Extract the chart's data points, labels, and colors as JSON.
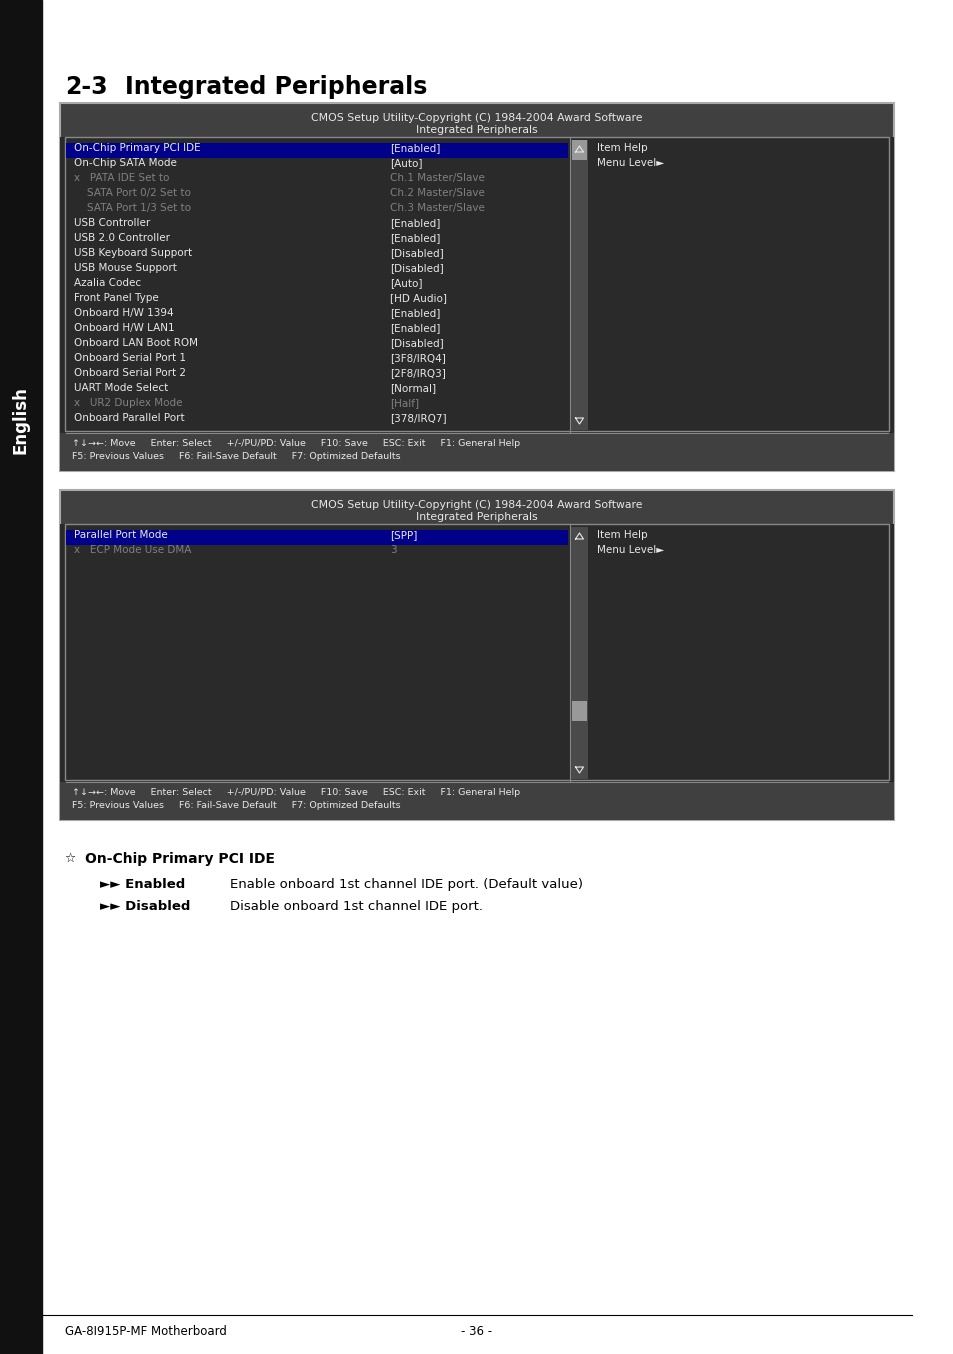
{
  "page_label": "GA-8I915P-MF Motherboard",
  "page_number": "- 36 -",
  "sidebar_text": "English",
  "heading_num": "2-3",
  "heading_txt": "Integrated Peripherals",
  "bios_title": "CMOS Setup Utility-Copyright (C) 1984-2004 Award Software",
  "bios_subtitle": "Integrated Peripherals",
  "table1_rows": [
    [
      "On-Chip Primary PCI IDE",
      "[Enabled]",
      "white"
    ],
    [
      "On-Chip SATA Mode",
      "[Auto]",
      "white"
    ],
    [
      "x   PATA IDE Set to",
      "Ch.1 Master/Slave",
      "gray"
    ],
    [
      "    SATA Port 0/2 Set to",
      "Ch.2 Master/Slave",
      "gray"
    ],
    [
      "    SATA Port 1/3 Set to",
      "Ch.3 Master/Slave",
      "gray"
    ],
    [
      "USB Controller",
      "[Enabled]",
      "white"
    ],
    [
      "USB 2.0 Controller",
      "[Enabled]",
      "white"
    ],
    [
      "USB Keyboard Support",
      "[Disabled]",
      "white"
    ],
    [
      "USB Mouse Support",
      "[Disabled]",
      "white"
    ],
    [
      "Azalia Codec",
      "[Auto]",
      "white"
    ],
    [
      "Front Panel Type",
      "[HD Audio]",
      "white"
    ],
    [
      "Onboard H/W 1394",
      "[Enabled]",
      "white"
    ],
    [
      "Onboard H/W LAN1",
      "[Enabled]",
      "white"
    ],
    [
      "Onboard LAN Boot ROM",
      "[Disabled]",
      "white"
    ],
    [
      "Onboard Serial Port 1",
      "[3F8/IRQ4]",
      "white"
    ],
    [
      "Onboard Serial Port 2",
      "[2F8/IRQ3]",
      "white"
    ],
    [
      "UART Mode Select",
      "[Normal]",
      "white"
    ],
    [
      "x   UR2 Duplex Mode",
      "[Half]",
      "gray"
    ],
    [
      "Onboard Parallel Port",
      "[378/IRQ7]",
      "white"
    ]
  ],
  "table1_footer_line1": "↑↓→←: Move     Enter: Select     +/-/PU/PD: Value     F10: Save     ESC: Exit     F1: General Help",
  "table1_footer_line2": "F5: Previous Values     F6: Fail-Save Default     F7: Optimized Defaults",
  "table2_rows": [
    [
      "Parallel Port Mode",
      "[SPP]",
      "white"
    ],
    [
      "x   ECP Mode Use DMA",
      "3",
      "gray"
    ]
  ],
  "table2_footer_line1": "↑↓→←: Move     Enter: Select     +/-/PU/PD: Value     F10: Save     ESC: Exit     F1: General Help",
  "table2_footer_line2": "F5: Previous Values     F6: Fail-Save Default     F7: Optimized Defaults",
  "section_symbol": "☆",
  "section_title": "On-Chip Primary PCI IDE",
  "bullet1_label": "►► Enabled",
  "bullet1_text": "Enable onboard 1st channel IDE port. (Default value)",
  "bullet2_label": "►► Disabled",
  "bullet2_text": "Disable onboard 1st channel IDE port.",
  "bg_color": "#ffffff",
  "sidebar_bg": "#111111",
  "bios_hdr_bg": "#404040",
  "bios_body_bg": "#2a2a2a",
  "bios_foot_bg": "#404040",
  "text_white": "#e8e8e8",
  "text_gray": "#808080",
  "highlight_bg": "#00008b",
  "scrollbar_track": "#4a4a4a",
  "scrollbar_thumb": "#999999",
  "border_color": "#aaaaaa",
  "inner_border": "#888888"
}
